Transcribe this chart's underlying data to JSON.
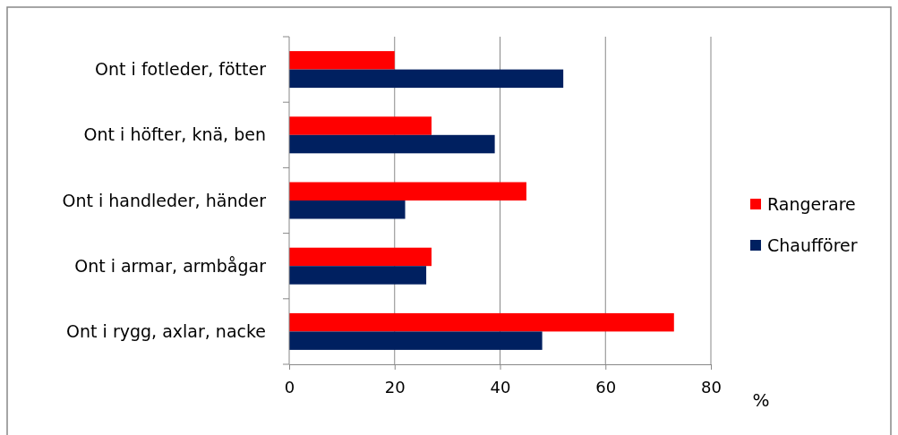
{
  "chart_data": {
    "type": "bar",
    "orientation": "horizontal",
    "xlabel": "%",
    "categories": [
      "Ont i fotleder, fötter",
      "Ont i höfter, knä, ben",
      "Ont i handleder, händer",
      "Ont i armar, armbågar",
      "Ont i rygg, axlar, nacke"
    ],
    "series": [
      {
        "name": "Rangerare",
        "color": "#ff0000",
        "values": [
          20,
          27,
          45,
          27,
          73
        ]
      },
      {
        "name": "Chaufförer",
        "color": "#002060",
        "values": [
          52,
          39,
          22,
          26,
          48
        ]
      }
    ],
    "xlim": [
      0,
      80
    ],
    "xticks": [
      0,
      20,
      40,
      60,
      80
    ],
    "grid": "x",
    "legend": "right"
  }
}
